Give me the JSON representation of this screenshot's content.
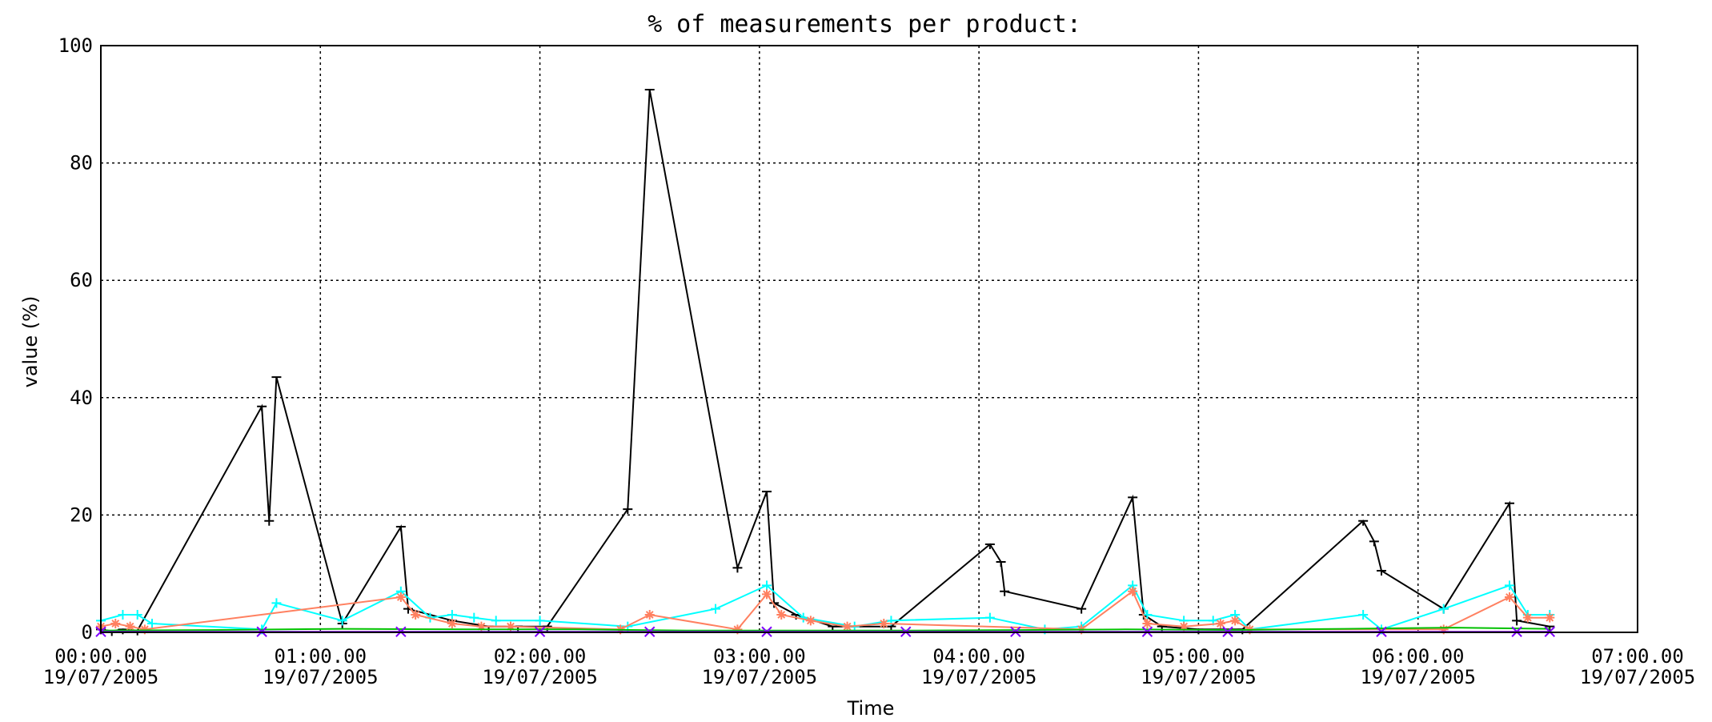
{
  "chart_data": {
    "type": "line",
    "title": "% of measurements per product:",
    "xlabel": "Time",
    "ylabel": "value (%)",
    "ylim": [
      0,
      100
    ],
    "yticks": [
      0,
      20,
      40,
      60,
      80,
      100
    ],
    "xlim": [
      "00:00.00 19/07/2005",
      "07:00.00 19/07/2005"
    ],
    "xticks": [
      {
        "time": "00:00.00",
        "date": "19/07/2005"
      },
      {
        "time": "01:00.00",
        "date": "19/07/2005"
      },
      {
        "time": "02:00.00",
        "date": "19/07/2005"
      },
      {
        "time": "03:00.00",
        "date": "19/07/2005"
      },
      {
        "time": "04:00.00",
        "date": "19/07/2005"
      },
      {
        "time": "05:00.00",
        "date": "19/07/2005"
      },
      {
        "time": "06:00.00",
        "date": "19/07/2005"
      },
      {
        "time": "07:00.00",
        "date": "19/07/2005"
      }
    ],
    "grid": true,
    "series": [
      {
        "color": "#000000",
        "marker": "tee",
        "points": [
          [
            "00:00",
            "0.5"
          ],
          [
            "00:03",
            "0.2"
          ],
          [
            "00:06",
            "0.5"
          ],
          [
            "00:10",
            "0.3"
          ],
          [
            "00:44",
            "38.5"
          ],
          [
            "00:46",
            "19"
          ],
          [
            "00:48",
            "43.5"
          ],
          [
            "01:06",
            "1.5"
          ],
          [
            "01:22",
            "18"
          ],
          [
            "01:24",
            "4"
          ],
          [
            "01:36",
            "2"
          ],
          [
            "01:46",
            "1"
          ],
          [
            "01:54",
            "1"
          ],
          [
            "02:02",
            "1"
          ],
          [
            "02:24",
            "21"
          ],
          [
            "02:30",
            "92.5"
          ],
          [
            "02:54",
            "11"
          ],
          [
            "03:02",
            "24"
          ],
          [
            "03:04",
            "5"
          ],
          [
            "03:10",
            "3"
          ],
          [
            "03:20",
            "1"
          ],
          [
            "03:36",
            "1"
          ],
          [
            "04:03",
            "15"
          ],
          [
            "04:06",
            "12"
          ],
          [
            "04:07",
            "7"
          ],
          [
            "04:28",
            "4"
          ],
          [
            "04:42",
            "23"
          ],
          [
            "04:45",
            "3"
          ],
          [
            "04:50",
            "1"
          ],
          [
            "05:00",
            "0.5"
          ],
          [
            "05:12",
            "0.5"
          ],
          [
            "05:45",
            "19"
          ],
          [
            "05:48",
            "15.5"
          ],
          [
            "05:50",
            "10.5"
          ],
          [
            "06:07",
            "4"
          ],
          [
            "06:25",
            "22"
          ],
          [
            "06:27",
            "2"
          ],
          [
            "06:36",
            "1"
          ]
        ]
      },
      {
        "color": "#00ffff",
        "marker": "plus",
        "points": [
          [
            "00:00",
            "2"
          ],
          [
            "00:06",
            "3"
          ],
          [
            "00:10",
            "3"
          ],
          [
            "00:14",
            "1.5"
          ],
          [
            "00:44",
            "0.5"
          ],
          [
            "00:48",
            "5"
          ],
          [
            "01:06",
            "2"
          ],
          [
            "01:22",
            "7"
          ],
          [
            "01:30",
            "2.5"
          ],
          [
            "01:36",
            "3"
          ],
          [
            "01:42",
            "2.5"
          ],
          [
            "01:48",
            "2"
          ],
          [
            "02:00",
            "2"
          ],
          [
            "02:24",
            "1"
          ],
          [
            "02:48",
            "4"
          ],
          [
            "03:02",
            "8"
          ],
          [
            "03:12",
            "2.5"
          ],
          [
            "03:26",
            "1"
          ],
          [
            "03:36",
            "2"
          ],
          [
            "04:03",
            "2.5"
          ],
          [
            "04:18",
            "0.5"
          ],
          [
            "04:28",
            "1"
          ],
          [
            "04:42",
            "8"
          ],
          [
            "04:46",
            "3"
          ],
          [
            "04:56",
            "2"
          ],
          [
            "05:04",
            "2"
          ],
          [
            "05:10",
            "3"
          ],
          [
            "05:14",
            "0.5"
          ],
          [
            "05:45",
            "3"
          ],
          [
            "05:50",
            "0.5"
          ],
          [
            "06:07",
            "4"
          ],
          [
            "06:25",
            "8"
          ],
          [
            "06:30",
            "3"
          ],
          [
            "06:36",
            "3"
          ]
        ]
      },
      {
        "color": "#ff8060",
        "marker": "asterisk",
        "points": [
          [
            "00:00",
            "1"
          ],
          [
            "00:04",
            "1.5"
          ],
          [
            "00:08",
            "1"
          ],
          [
            "00:12",
            "0.5"
          ],
          [
            "01:22",
            "6"
          ],
          [
            "01:26",
            "3"
          ],
          [
            "01:36",
            "1.5"
          ],
          [
            "01:44",
            "1"
          ],
          [
            "01:52",
            "1"
          ],
          [
            "02:22",
            "0.5"
          ],
          [
            "02:30",
            "3"
          ],
          [
            "02:54",
            "0.5"
          ],
          [
            "03:02",
            "6.5"
          ],
          [
            "03:06",
            "3"
          ],
          [
            "03:14",
            "2"
          ],
          [
            "03:24",
            "1"
          ],
          [
            "03:34",
            "1.5"
          ],
          [
            "04:28",
            "0.5"
          ],
          [
            "04:42",
            "7"
          ],
          [
            "04:46",
            "1.5"
          ],
          [
            "04:56",
            "1"
          ],
          [
            "05:06",
            "1.5"
          ],
          [
            "05:10",
            "2"
          ],
          [
            "05:14",
            "0.5"
          ],
          [
            "06:07",
            "0.5"
          ],
          [
            "06:25",
            "6"
          ],
          [
            "06:30",
            "2.5"
          ],
          [
            "06:36",
            "2.5"
          ]
        ]
      },
      {
        "color": "#00c000",
        "marker": "none",
        "points": [
          [
            "00:00",
            "0.3"
          ],
          [
            "00:30",
            "0.4"
          ],
          [
            "01:06",
            "0.6"
          ],
          [
            "01:40",
            "0.5"
          ],
          [
            "02:10",
            "0.5"
          ],
          [
            "02:40",
            "0.3"
          ],
          [
            "03:10",
            "0.3"
          ],
          [
            "03:40",
            "0.3"
          ],
          [
            "04:10",
            "0.4"
          ],
          [
            "04:40",
            "0.5"
          ],
          [
            "05:10",
            "0.4"
          ],
          [
            "05:40",
            "0.6"
          ],
          [
            "06:10",
            "0.8"
          ],
          [
            "06:36",
            "0.6"
          ]
        ]
      },
      {
        "color": "#8000ff",
        "marker": "x",
        "points": [
          [
            "00:00",
            "0.1"
          ],
          [
            "00:44",
            "0.1"
          ],
          [
            "01:22",
            "0.1"
          ],
          [
            "02:00",
            "0.1"
          ],
          [
            "02:30",
            "0.1"
          ],
          [
            "03:02",
            "0.1"
          ],
          [
            "03:40",
            "0.1"
          ],
          [
            "04:10",
            "0.1"
          ],
          [
            "04:46",
            "0.1"
          ],
          [
            "05:08",
            "0.1"
          ],
          [
            "05:50",
            "0.1"
          ],
          [
            "06:27",
            "0.1"
          ],
          [
            "06:36",
            "0.1"
          ]
        ]
      },
      {
        "color": "#ff00ff",
        "marker": "none",
        "points": [
          [
            "00:00",
            "0"
          ],
          [
            "01:00",
            "0"
          ],
          [
            "02:00",
            "0"
          ],
          [
            "03:00",
            "0"
          ],
          [
            "04:00",
            "0"
          ],
          [
            "05:00",
            "0"
          ],
          [
            "06:00",
            "0"
          ],
          [
            "06:36",
            "0"
          ]
        ]
      }
    ]
  }
}
